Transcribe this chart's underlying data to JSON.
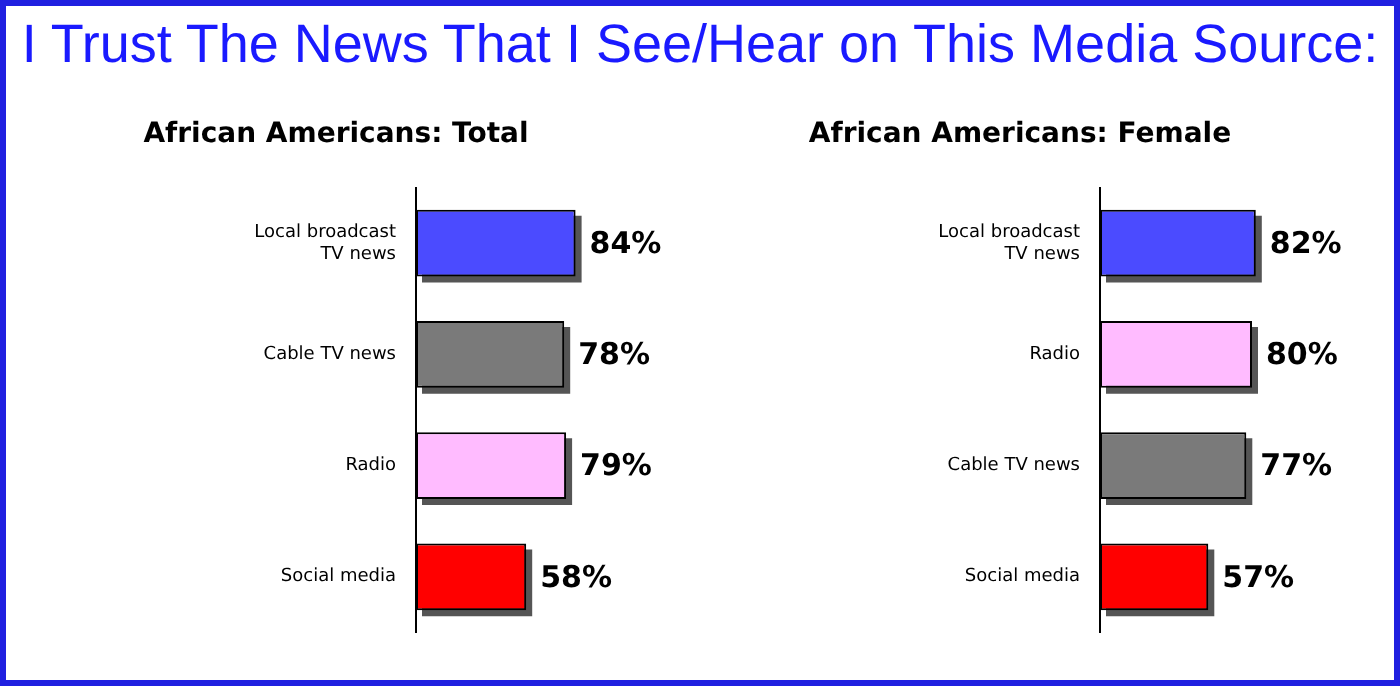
{
  "chart_data": [
    {
      "type": "other",
      "title": "I Trust The News That I See/Hear on This Media Source:"
    },
    {
      "type": "bar",
      "orientation": "horizontal",
      "title": "African Americans: Total",
      "categories": [
        "Local broadcast TV news",
        "Cable TV news",
        "Radio",
        "Social media"
      ],
      "values": [
        84,
        78,
        79,
        58
      ],
      "colors": [
        "#4b4bff",
        "#7a7a7a",
        "#ffbbff",
        "#ff0000"
      ],
      "value_labels": [
        "84%",
        "78%",
        "79%",
        "58%"
      ],
      "tick_labels": "y"
    },
    {
      "type": "bar",
      "orientation": "horizontal",
      "title": "African Americans: Female",
      "categories": [
        "Local broadcast TV news",
        "Radio",
        "Cable TV news",
        "Social media"
      ],
      "values": [
        82,
        80,
        77,
        57
      ],
      "colors": [
        "#4b4bff",
        "#ffbbff",
        "#7a7a7a",
        "#ff0000"
      ],
      "value_labels": [
        "82%",
        "80%",
        "77%",
        "57%"
      ],
      "tick_labels": "y"
    }
  ]
}
